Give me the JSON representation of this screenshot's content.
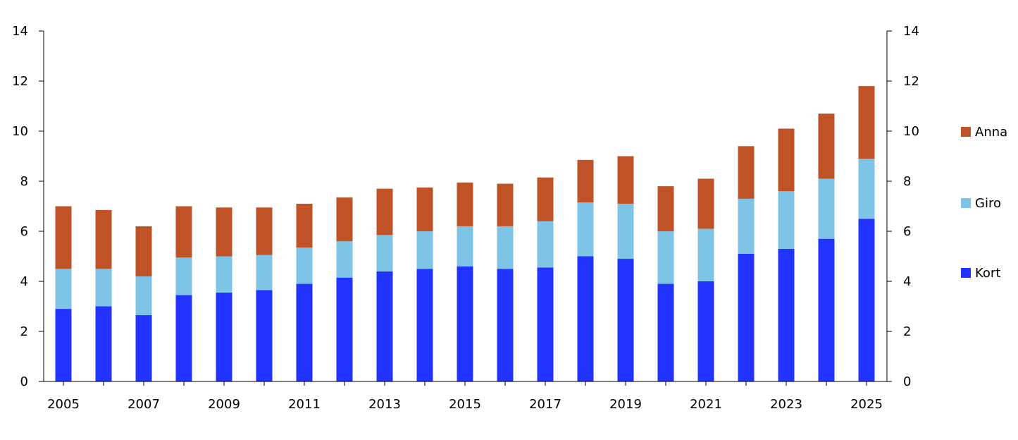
{
  "chart_data": {
    "type": "bar",
    "stacked": true,
    "categories": [
      "2005",
      "2006",
      "2007",
      "2008",
      "2009",
      "2010",
      "2011",
      "2012",
      "2013",
      "2014",
      "2015",
      "2016",
      "2017",
      "2018",
      "2019",
      "2020",
      "2021",
      "2022",
      "2023",
      "2024",
      "2025"
    ],
    "x_tick_labels": [
      "2005",
      "2007",
      "2009",
      "2011",
      "2013",
      "2015",
      "2017",
      "2019",
      "2021",
      "2023",
      "2025"
    ],
    "y_ticks": [
      "0",
      "2",
      "4",
      "6",
      "8",
      "10",
      "12",
      "14"
    ],
    "ylim": [
      0,
      14
    ],
    "secondary_axis": true,
    "grid": false,
    "legend_position": "right",
    "series": [
      {
        "name": "Kort",
        "color": "#2233ff",
        "values": [
          2.9,
          3.0,
          2.65,
          3.45,
          3.55,
          3.65,
          3.9,
          4.15,
          4.4,
          4.5,
          4.6,
          4.5,
          4.55,
          5.0,
          4.9,
          3.9,
          4.0,
          5.1,
          5.3,
          5.7,
          6.5
        ]
      },
      {
        "name": "Giro",
        "color": "#7ec4e6",
        "values": [
          1.6,
          1.5,
          1.55,
          1.5,
          1.45,
          1.4,
          1.45,
          1.45,
          1.45,
          1.5,
          1.6,
          1.7,
          1.85,
          2.15,
          2.2,
          2.1,
          2.1,
          2.2,
          2.3,
          2.4,
          2.4
        ]
      },
      {
        "name": "Anna",
        "color": "#bf5327",
        "values": [
          2.5,
          2.35,
          2.0,
          2.05,
          1.95,
          1.9,
          1.75,
          1.75,
          1.85,
          1.75,
          1.75,
          1.7,
          1.75,
          1.7,
          1.9,
          1.8,
          2.0,
          2.1,
          2.5,
          2.6,
          2.9
        ]
      }
    ],
    "legend_order": [
      "Anna",
      "Giro",
      "Kort"
    ]
  }
}
